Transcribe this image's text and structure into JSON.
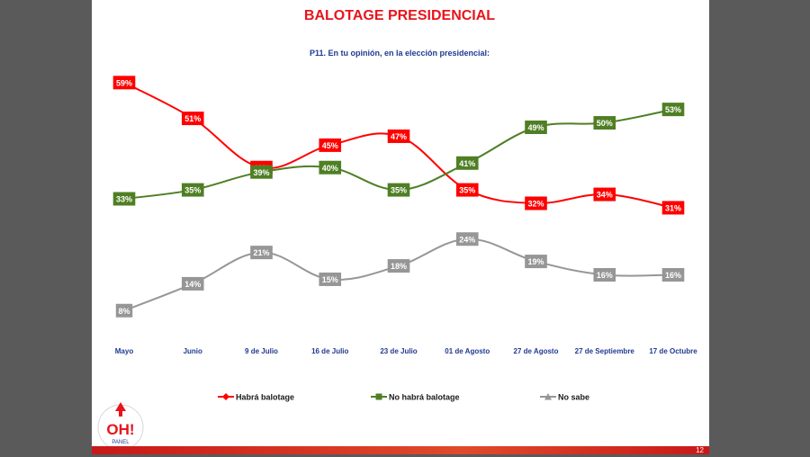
{
  "chart_data": {
    "type": "line",
    "title": "BALOTAGE PRESIDENCIAL",
    "subtitle": "P11. En tu opinión, en la elección presidencial:",
    "categories": [
      "Mayo",
      "Junio",
      "9 de Julio",
      "16 de Julio",
      "23 de Julio",
      "01 de Agosto",
      "27 de Agosto",
      "27 de Septiembre",
      "17 de Octubre"
    ],
    "series": [
      {
        "name": "Habrá balotage",
        "values": [
          59,
          51,
          40,
          45,
          47,
          35,
          32,
          34,
          31
        ],
        "color": "#ff0000",
        "marker": "diamond",
        "labels": [
          "59%",
          "51%",
          "40%",
          "45%",
          "47%",
          "35%",
          "32%",
          "34%",
          "31%"
        ]
      },
      {
        "name": "No habrá balotage",
        "values": [
          33,
          35,
          39,
          40,
          35,
          41,
          49,
          50,
          53
        ],
        "color": "#4f7f24",
        "marker": "square",
        "labels": [
          "33%",
          "35%",
          "39%",
          "40%",
          "35%",
          "41%",
          "49%",
          "50%",
          "53%"
        ]
      },
      {
        "name": "No sabe",
        "values": [
          8,
          14,
          21,
          15,
          18,
          24,
          19,
          16,
          16
        ],
        "color": "#969696",
        "marker": "triangle",
        "labels": [
          "8%",
          "14%",
          "21%",
          "15%",
          "18%",
          "24%",
          "19%",
          "16%",
          "16%"
        ]
      }
    ],
    "ylim": [
      0,
      65
    ],
    "grid": false,
    "legend": "bottom"
  },
  "logo": {
    "text": "OH!",
    "subtext": "PANEL"
  },
  "footer": {
    "page": "12"
  }
}
